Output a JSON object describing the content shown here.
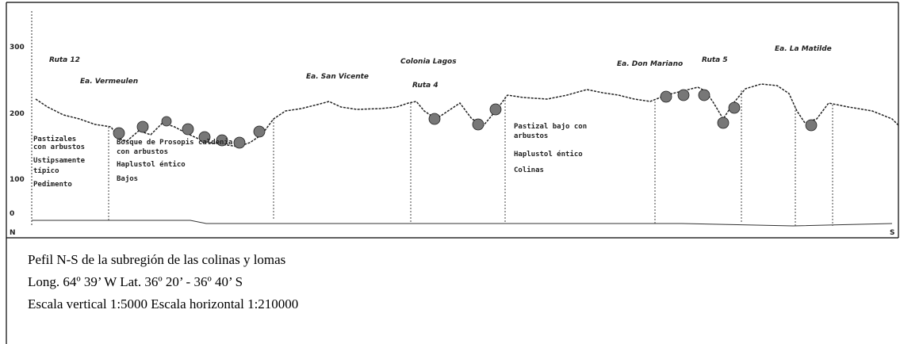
{
  "axis": {
    "yticks": [
      "300",
      "200",
      "100",
      "0"
    ],
    "start": "N",
    "end": "S"
  },
  "places": [
    "Ruta 12",
    "Ea. Vermeulen",
    "Ea. San Vicente",
    "Colonia Lagos",
    "Ruta 4",
    "Ea. Don Mariano",
    "Ruta 5",
    "Ea. La Matilde"
  ],
  "zones": [
    {
      "lines": [
        "Pastizales",
        "con arbustos",
        "Ustipsamente",
        "típico",
        "Pedimento"
      ]
    },
    {
      "lines": [
        "Bosque de Prosopis caldenia",
        "con arbustos",
        "Haplustol éntico",
        "Bajos"
      ]
    },
    {
      "lines": [
        "Pastizal bajo con",
        "arbustos",
        "Haplustol éntico",
        "Colinas"
      ]
    }
  ],
  "caption": [
    "Pefil N-S de la subregión de las colinas y lomas",
    "Long. 64º 39’ W Lat. 36º 20’ - 36º 40’ S",
    "Escala vertical 1:5000  Escala horizontal 1:210000"
  ]
}
